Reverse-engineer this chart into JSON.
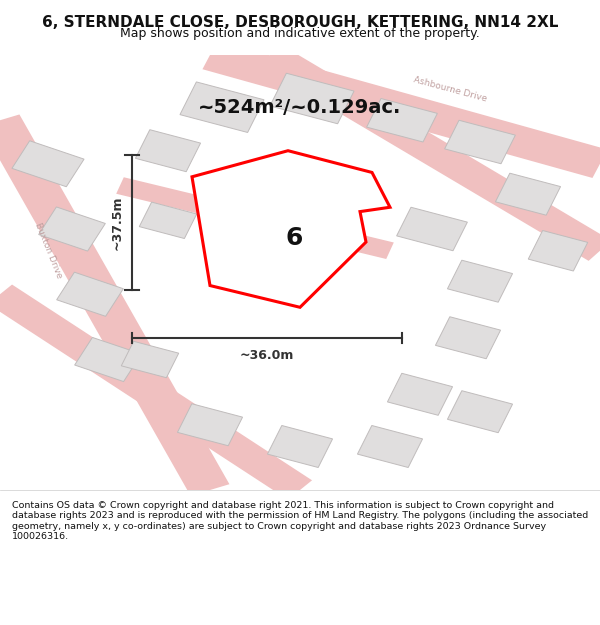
{
  "title": "6, STERNDALE CLOSE, DESBOROUGH, KETTERING, NN14 2XL",
  "subtitle": "Map shows position and indicative extent of the property.",
  "area_text": "~524m²/~0.129ac.",
  "width_label": "~36.0m",
  "height_label": "~37.5m",
  "plot_number": "6",
  "footer": "Contains OS data © Crown copyright and database right 2021. This information is subject to Crown copyright and database rights 2023 and is reproduced with the permission of HM Land Registry. The polygons (including the associated geometry, namely x, y co-ordinates) are subject to Crown copyright and database rights 2023 Ordnance Survey 100026316.",
  "bg_color": "#f5f5f5",
  "map_bg": "#f0eeee",
  "road_color_light": "#f0c0c0",
  "road_color_dark": "#d09090",
  "building_fill": "#e0dede",
  "building_stroke": "#c0bcbc",
  "plot_fill": "#ffffff",
  "plot_stroke": "#ff0000",
  "dimension_color": "#333333",
  "text_color": "#111111",
  "street_label_color": "#c0a0a0",
  "figsize": [
    6.0,
    6.25
  ],
  "dpi": 100
}
